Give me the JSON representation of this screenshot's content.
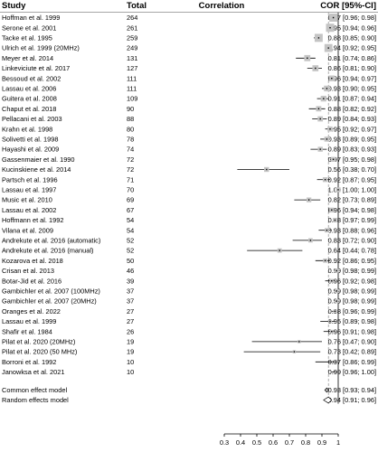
{
  "chart_data": {
    "type": "forest",
    "headers": {
      "study": "Study",
      "total": "Total",
      "correlation": "Correlation",
      "cor": "COR [95%-CI]"
    },
    "xlim": [
      0.3,
      1.0
    ],
    "xticks": [
      "0.3",
      "0.4",
      "0.5",
      "0.6",
      "0.7",
      "0.8",
      "0.9",
      "1"
    ],
    "reference_line": 0.94,
    "rows": [
      {
        "study": "Hoffman et al. 1999",
        "total": "264",
        "cor": 0.97,
        "lo": 0.96,
        "hi": 0.98,
        "ci_text": "0.97 [0.96; 0.98]"
      },
      {
        "study": "Serone et al. 2001",
        "total": "261",
        "cor": 0.95,
        "lo": 0.94,
        "hi": 0.96,
        "ci_text": "0.95 [0.94; 0.96]"
      },
      {
        "study": "Tacke et al. 1995",
        "total": "259",
        "cor": 0.88,
        "lo": 0.85,
        "hi": 0.9,
        "ci_text": "0.88 [0.85; 0.90]"
      },
      {
        "study": "Ulrich et al. 1999 (20MHz)",
        "total": "249",
        "cor": 0.94,
        "lo": 0.92,
        "hi": 0.95,
        "ci_text": "0.94 [0.92; 0.95]"
      },
      {
        "study": "Meyer et al. 2014",
        "total": "131",
        "cor": 0.81,
        "lo": 0.74,
        "hi": 0.86,
        "ci_text": "0.81 [0.74; 0.86]"
      },
      {
        "study": "Linkeviciute et al. 2017",
        "total": "127",
        "cor": 0.86,
        "lo": 0.81,
        "hi": 0.9,
        "ci_text": "0.86 [0.81; 0.90]"
      },
      {
        "study": "Bessoud et al. 2002",
        "total": "111",
        "cor": 0.96,
        "lo": 0.94,
        "hi": 0.97,
        "ci_text": "0.96 [0.94; 0.97]"
      },
      {
        "study": "Lassau et al. 2006",
        "total": "111",
        "cor": 0.93,
        "lo": 0.9,
        "hi": 0.95,
        "ci_text": "0.93 [0.90; 0.95]"
      },
      {
        "study": "Guitera et al. 2008",
        "total": "109",
        "cor": 0.91,
        "lo": 0.87,
        "hi": 0.94,
        "ci_text": "0.91 [0.87; 0.94]"
      },
      {
        "study": "Chaput et al. 2018",
        "total": "90",
        "cor": 0.88,
        "lo": 0.82,
        "hi": 0.92,
        "ci_text": "0.88 [0.82; 0.92]"
      },
      {
        "study": "Pellacani et al. 2003",
        "total": "88",
        "cor": 0.89,
        "lo": 0.84,
        "hi": 0.93,
        "ci_text": "0.89 [0.84; 0.93]"
      },
      {
        "study": "Krahn et al. 1998",
        "total": "80",
        "cor": 0.95,
        "lo": 0.92,
        "hi": 0.97,
        "ci_text": "0.95 [0.92; 0.97]"
      },
      {
        "study": "Solivetti et al. 1998",
        "total": "78",
        "cor": 0.93,
        "lo": 0.89,
        "hi": 0.95,
        "ci_text": "0.93 [0.89; 0.95]"
      },
      {
        "study": "Hayashi et al. 2009",
        "total": "74",
        "cor": 0.89,
        "lo": 0.83,
        "hi": 0.93,
        "ci_text": "0.89 [0.83; 0.93]"
      },
      {
        "study": "Gassenmaier et al. 1990",
        "total": "72",
        "cor": 0.97,
        "lo": 0.95,
        "hi": 0.98,
        "ci_text": "0.97 [0.95; 0.98]"
      },
      {
        "study": "Kucinskiene et al. 2014",
        "total": "72",
        "cor": 0.56,
        "lo": 0.38,
        "hi": 0.7,
        "ci_text": "0.56 [0.38; 0.70]"
      },
      {
        "study": "Partsch et al. 1996",
        "total": "71",
        "cor": 0.92,
        "lo": 0.87,
        "hi": 0.95,
        "ci_text": "0.92 [0.87; 0.95]"
      },
      {
        "study": "Lassau et al. 1997",
        "total": "70",
        "cor": 1.0,
        "lo": 1.0,
        "hi": 1.0,
        "ci_text": "1.00 [1.00; 1.00]"
      },
      {
        "study": "Music et al. 2010",
        "total": "69",
        "cor": 0.82,
        "lo": 0.73,
        "hi": 0.89,
        "ci_text": "0.82 [0.73; 0.89]"
      },
      {
        "study": "Lassau et al. 2002",
        "total": "67",
        "cor": 0.96,
        "lo": 0.94,
        "hi": 0.98,
        "ci_text": "0.96 [0.94; 0.98]"
      },
      {
        "study": "Hoffmann et al. 1992",
        "total": "54",
        "cor": 0.98,
        "lo": 0.97,
        "hi": 0.99,
        "ci_text": "0.98 [0.97; 0.99]"
      },
      {
        "study": "Vilana et al. 2009",
        "total": "54",
        "cor": 0.93,
        "lo": 0.88,
        "hi": 0.96,
        "ci_text": "0.93 [0.88; 0.96]"
      },
      {
        "study": "Andrekute et al. 2016 (automatic)",
        "total": "52",
        "cor": 0.83,
        "lo": 0.72,
        "hi": 0.9,
        "ci_text": "0.83 [0.72; 0.90]"
      },
      {
        "study": "Andrekute et al. 2016 (manual)",
        "total": "52",
        "cor": 0.64,
        "lo": 0.44,
        "hi": 0.78,
        "ci_text": "0.64 [0.44; 0.78]"
      },
      {
        "study": "Kozarova et al. 2018",
        "total": "50",
        "cor": 0.92,
        "lo": 0.86,
        "hi": 0.95,
        "ci_text": "0.92 [0.86; 0.95]"
      },
      {
        "study": "Crisan et al. 2013",
        "total": "46",
        "cor": 0.99,
        "lo": 0.98,
        "hi": 0.99,
        "ci_text": "0.99 [0.98; 0.99]"
      },
      {
        "study": "Botar-Jid et al. 2016",
        "total": "39",
        "cor": 0.96,
        "lo": 0.92,
        "hi": 0.98,
        "ci_text": "0.96 [0.92; 0.98]"
      },
      {
        "study": "Gambichler et al. 2007 (100MHz)",
        "total": "37",
        "cor": 0.99,
        "lo": 0.98,
        "hi": 0.99,
        "ci_text": "0.99 [0.98; 0.99]"
      },
      {
        "study": "Gambichler et al. 2007 (20MHz)",
        "total": "37",
        "cor": 0.99,
        "lo": 0.98,
        "hi": 0.99,
        "ci_text": "0.99 [0.98; 0.99]"
      },
      {
        "study": "Oranges et al. 2022",
        "total": "27",
        "cor": 0.98,
        "lo": 0.96,
        "hi": 0.99,
        "ci_text": "0.98 [0.96; 0.99]"
      },
      {
        "study": "Lassau et al. 1999",
        "total": "27",
        "cor": 0.95,
        "lo": 0.89,
        "hi": 0.98,
        "ci_text": "0.95 [0.89; 0.98]"
      },
      {
        "study": "Shafir et al. 1984",
        "total": "26",
        "cor": 0.96,
        "lo": 0.91,
        "hi": 0.98,
        "ci_text": "0.96 [0.91; 0.98]"
      },
      {
        "study": "Pilat et al. 2020 (20MHz)",
        "total": "19",
        "cor": 0.76,
        "lo": 0.47,
        "hi": 0.9,
        "ci_text": "0.76 [0.47; 0.90]"
      },
      {
        "study": "Pilat et al. 2020 (50 MHz)",
        "total": "19",
        "cor": 0.73,
        "lo": 0.42,
        "hi": 0.89,
        "ci_text": "0.73 [0.42; 0.89]"
      },
      {
        "study": "Borroni et al. 1992",
        "total": "10",
        "cor": 0.97,
        "lo": 0.86,
        "hi": 0.99,
        "ci_text": "0.97 [0.86; 0.99]"
      },
      {
        "study": "Janowksa et al. 2021",
        "total": "10",
        "cor": 0.99,
        "lo": 0.96,
        "hi": 1.0,
        "ci_text": "0.99 [0.96; 1.00]"
      }
    ],
    "pooled": [
      {
        "model": "Common effect model",
        "cor": 0.93,
        "lo": 0.93,
        "hi": 0.94,
        "ci_text": "0.93 [0.93; 0.94]"
      },
      {
        "model": "Random effects model",
        "cor": 0.94,
        "lo": 0.91,
        "hi": 0.96,
        "ci_text": "0.94 [0.91; 0.96]"
      }
    ]
  }
}
